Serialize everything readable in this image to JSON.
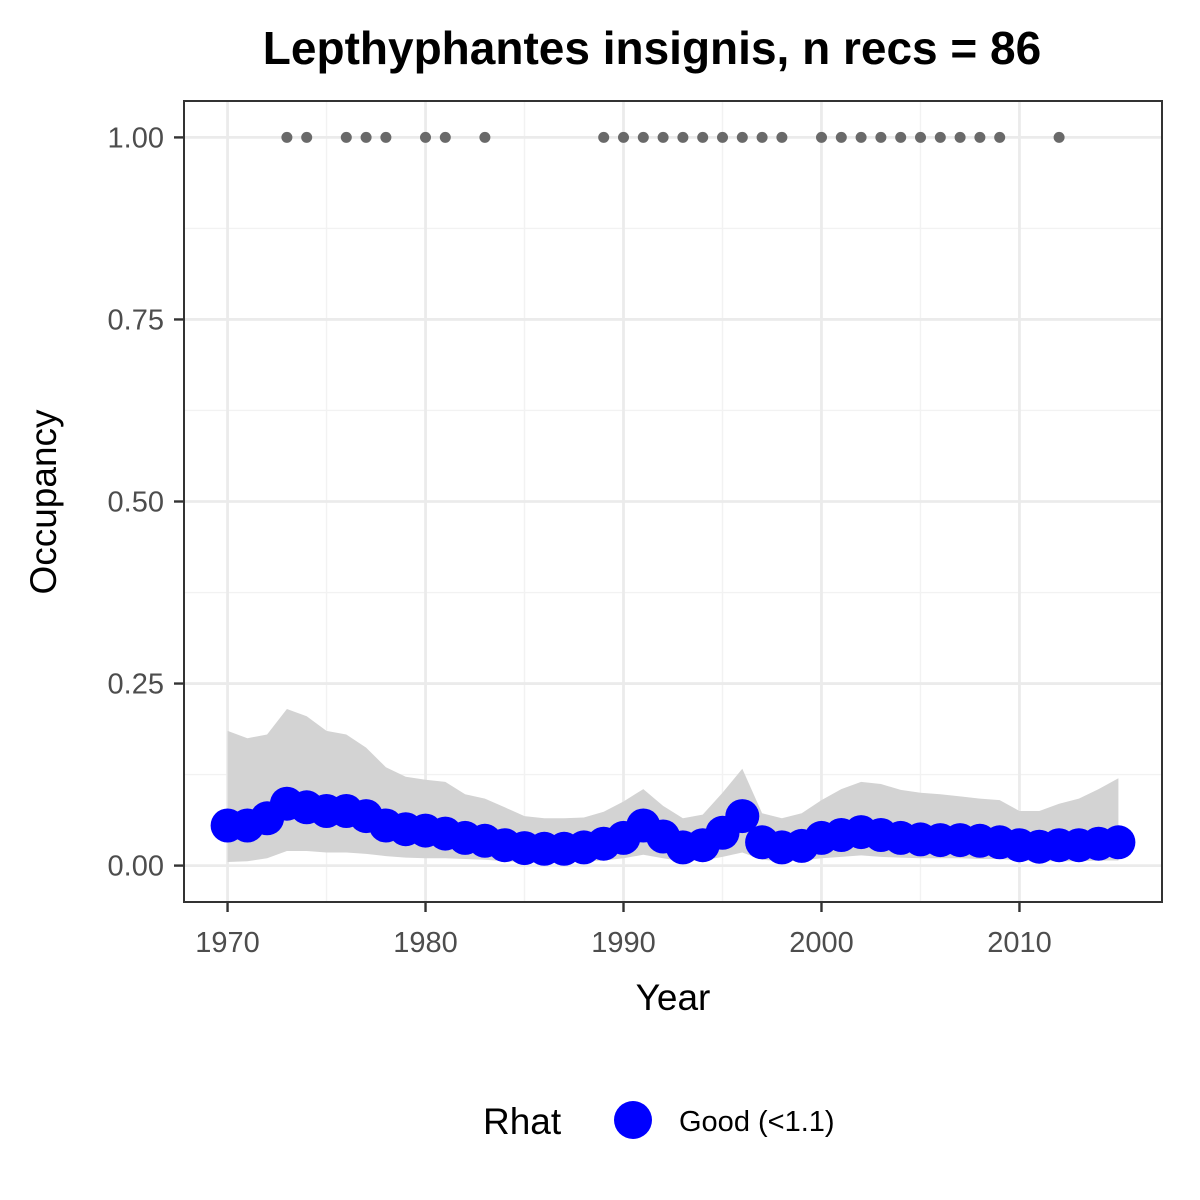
{
  "chart_data": {
    "type": "line",
    "title": "Lepthyphantes insignis, n recs = 86",
    "xlabel": "Year",
    "ylabel": "Occupancy",
    "xlim": [
      1967.8,
      2017.2
    ],
    "ylim": [
      -0.05,
      1.05
    ],
    "x_ticks": [
      1970,
      1980,
      1990,
      2000,
      2010
    ],
    "x_tick_labels": [
      "1970",
      "1980",
      "1990",
      "2000",
      "2010"
    ],
    "y_ticks": [
      0,
      0.25,
      0.5,
      0.75,
      1.0
    ],
    "y_tick_labels": [
      "0.00",
      "0.25",
      "0.50",
      "0.75",
      "1.00"
    ],
    "grid": true,
    "legend": {
      "title": "Rhat",
      "placement": "bottom",
      "entries": [
        {
          "label": "Good (<1.1)",
          "color": "#0000ff"
        }
      ]
    },
    "colors": {
      "series": "#0000ff",
      "ribbon": "#d3d3d3",
      "records": "#696969",
      "grid": "#ebebeb",
      "panel_border": "#333333"
    },
    "series": [
      {
        "name": "Good (<1.1)",
        "x": [
          1970,
          1971,
          1972,
          1973,
          1974,
          1975,
          1976,
          1977,
          1978,
          1979,
          1980,
          1981,
          1982,
          1983,
          1984,
          1985,
          1986,
          1987,
          1988,
          1989,
          1990,
          1991,
          1992,
          1993,
          1994,
          1995,
          1996,
          1997,
          1998,
          1999,
          2000,
          2001,
          2002,
          2003,
          2004,
          2005,
          2006,
          2007,
          2008,
          2009,
          2010,
          2011,
          2012,
          2013,
          2014,
          2015
        ],
        "y": [
          0.055,
          0.055,
          0.065,
          0.085,
          0.08,
          0.075,
          0.075,
          0.068,
          0.055,
          0.05,
          0.048,
          0.044,
          0.038,
          0.034,
          0.028,
          0.024,
          0.023,
          0.023,
          0.025,
          0.03,
          0.038,
          0.055,
          0.04,
          0.025,
          0.028,
          0.045,
          0.068,
          0.032,
          0.025,
          0.027,
          0.038,
          0.042,
          0.046,
          0.042,
          0.038,
          0.036,
          0.035,
          0.035,
          0.034,
          0.032,
          0.028,
          0.026,
          0.028,
          0.028,
          0.03,
          0.032
        ],
        "lower": [
          0.005,
          0.006,
          0.01,
          0.02,
          0.02,
          0.018,
          0.018,
          0.016,
          0.013,
          0.011,
          0.01,
          0.01,
          0.009,
          0.008,
          0.006,
          0.005,
          0.005,
          0.005,
          0.006,
          0.007,
          0.01,
          0.015,
          0.01,
          0.006,
          0.007,
          0.012,
          0.018,
          0.008,
          0.006,
          0.007,
          0.01,
          0.012,
          0.014,
          0.012,
          0.011,
          0.01,
          0.01,
          0.01,
          0.009,
          0.009,
          0.007,
          0.006,
          0.006,
          0.006,
          0.007,
          0.007
        ],
        "upper": [
          0.185,
          0.175,
          0.18,
          0.215,
          0.205,
          0.185,
          0.18,
          0.162,
          0.135,
          0.122,
          0.118,
          0.115,
          0.098,
          0.092,
          0.08,
          0.068,
          0.065,
          0.065,
          0.066,
          0.074,
          0.088,
          0.105,
          0.082,
          0.065,
          0.07,
          0.1,
          0.133,
          0.072,
          0.065,
          0.072,
          0.09,
          0.105,
          0.115,
          0.112,
          0.104,
          0.1,
          0.098,
          0.095,
          0.092,
          0.09,
          0.075,
          0.075,
          0.085,
          0.092,
          0.105,
          0.12
        ]
      }
    ],
    "records": {
      "y": 1.0,
      "x": [
        1973,
        1974,
        1976,
        1977,
        1978,
        1980,
        1981,
        1983,
        1989,
        1990,
        1991,
        1992,
        1993,
        1994,
        1995,
        1996,
        1997,
        1998,
        2000,
        2001,
        2002,
        2003,
        2004,
        2005,
        2006,
        2007,
        2008,
        2009,
        2012
      ]
    }
  }
}
